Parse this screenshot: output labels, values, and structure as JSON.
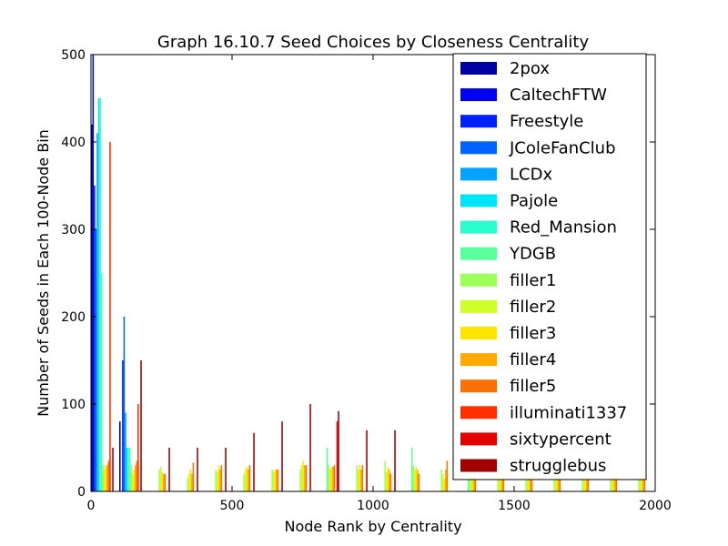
{
  "chart_data": {
    "type": "bar",
    "title": "Graph 16.10.7 Seed Choices by Closeness Centrality",
    "xlabel": "Node Rank by Centrality",
    "ylabel": "Number of Seeds in Each 100-Node Bin",
    "xlim": [
      0,
      2000
    ],
    "ylim": [
      0,
      500
    ],
    "xticks": [
      "0",
      "500",
      "1000",
      "1500",
      "2000"
    ],
    "yticks": [
      "0",
      "100",
      "200",
      "300",
      "400",
      "500"
    ],
    "legend_position": "top-right",
    "grid": false,
    "bin_width": 100,
    "bins": [
      0,
      100,
      200,
      300,
      400,
      500,
      600,
      700,
      800,
      900,
      1000,
      1100,
      1200,
      1300,
      1400,
      1500,
      1600,
      1700,
      1800,
      1900
    ],
    "series": [
      {
        "name": "2pox",
        "color": "#0000a0",
        "values": [
          420,
          80,
          0,
          0,
          0,
          0,
          0,
          0,
          0,
          0,
          0,
          0,
          0,
          0,
          0,
          0,
          0,
          0,
          0,
          0
        ]
      },
      {
        "name": "CaltechFTW",
        "color": "#0000f0",
        "values": [
          500,
          0,
          0,
          0,
          0,
          0,
          0,
          0,
          0,
          0,
          0,
          0,
          0,
          0,
          0,
          0,
          0,
          0,
          0,
          0
        ]
      },
      {
        "name": "Freestyle",
        "color": "#0020ff",
        "values": [
          350,
          150,
          0,
          0,
          0,
          0,
          0,
          0,
          0,
          0,
          0,
          0,
          0,
          0,
          0,
          0,
          0,
          0,
          0,
          0
        ]
      },
      {
        "name": "JColeFanClub",
        "color": "#0064ff",
        "values": [
          300,
          200,
          0,
          0,
          0,
          0,
          0,
          0,
          0,
          0,
          0,
          0,
          0,
          0,
          0,
          0,
          0,
          0,
          0,
          0
        ]
      },
      {
        "name": "LCDx",
        "color": "#00a4ff",
        "values": [
          410,
          90,
          0,
          0,
          0,
          0,
          0,
          0,
          0,
          0,
          0,
          0,
          0,
          0,
          0,
          0,
          0,
          0,
          0,
          0
        ]
      },
      {
        "name": "Pajole",
        "color": "#00e4f8",
        "values": [
          450,
          50,
          0,
          0,
          0,
          0,
          0,
          0,
          0,
          0,
          0,
          0,
          0,
          0,
          0,
          0,
          0,
          0,
          0,
          0
        ]
      },
      {
        "name": "Red_Mansion",
        "color": "#29ffce",
        "values": [
          450,
          50,
          0,
          0,
          0,
          0,
          0,
          0,
          0,
          0,
          0,
          0,
          0,
          0,
          0,
          0,
          0,
          0,
          0,
          0
        ]
      },
      {
        "name": "YDGB",
        "color": "#5aff9d",
        "values": [
          250,
          50,
          0,
          0,
          0,
          0,
          0,
          0,
          50,
          0,
          0,
          50,
          0,
          50,
          0,
          0,
          0,
          0,
          0,
          0
        ]
      },
      {
        "name": "filler1",
        "color": "#9dff5a",
        "values": [
          30,
          30,
          25,
          15,
          25,
          20,
          25,
          25,
          30,
          30,
          35,
          30,
          25,
          30,
          30,
          20,
          30,
          25,
          25,
          30
        ]
      },
      {
        "name": "filler2",
        "color": "#ceff29",
        "values": [
          25,
          20,
          28,
          20,
          22,
          25,
          22,
          30,
          25,
          25,
          22,
          25,
          20,
          25,
          25,
          25,
          25,
          20,
          25,
          25
        ]
      },
      {
        "name": "filler3",
        "color": "#ffe600",
        "values": [
          30,
          25,
          22,
          25,
          30,
          28,
          25,
          35,
          28,
          30,
          28,
          28,
          15,
          30,
          25,
          25,
          20,
          30,
          25,
          30
        ]
      },
      {
        "name": "filler4",
        "color": "#ffaa00",
        "values": [
          30,
          30,
          20,
          20,
          25,
          25,
          25,
          30,
          28,
          25,
          25,
          25,
          25,
          25,
          25,
          30,
          25,
          25,
          25,
          25
        ]
      },
      {
        "name": "filler5",
        "color": "#ff7000",
        "values": [
          35,
          35,
          20,
          33,
          30,
          30,
          25,
          30,
          30,
          30,
          20,
          20,
          35,
          25,
          25,
          25,
          25,
          25,
          25,
          25
        ]
      },
      {
        "name": "illuminati1337",
        "color": "#ff3000",
        "values": [
          400,
          100,
          0,
          0,
          0,
          0,
          0,
          0,
          0,
          0,
          0,
          0,
          0,
          0,
          0,
          0,
          0,
          0,
          0,
          0
        ]
      },
      {
        "name": "sixtypercent",
        "color": "#e40000",
        "values": [
          0,
          0,
          0,
          0,
          0,
          0,
          0,
          0,
          80,
          0,
          0,
          0,
          0,
          0,
          0,
          0,
          0,
          0,
          0,
          0
        ]
      },
      {
        "name": "strugglebus",
        "color": "#a00000",
        "values": [
          50,
          150,
          50,
          50,
          50,
          67,
          80,
          100,
          92,
          70,
          70,
          0,
          0,
          0,
          0,
          0,
          0,
          0,
          0,
          0
        ]
      }
    ]
  }
}
